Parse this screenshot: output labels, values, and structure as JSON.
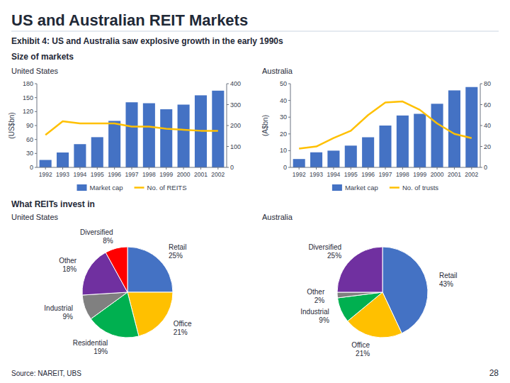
{
  "title": "US and Australian REIT Markets",
  "subtitle": "Exhibit 4: US and Australia saw explosive growth in the early 1990s",
  "annotations": [
    "Size of markets",
    "What REITs invest in",
    "Source:   NAREIT, UBS",
    "28"
  ],
  "chart_data": [
    {
      "type": "bar",
      "title": "United States",
      "categories": [
        "1992",
        "1993",
        "1994",
        "1995",
        "1996",
        "1997",
        "1998",
        "1999",
        "2000",
        "2001",
        "2002"
      ],
      "series": [
        {
          "name": "Market cap",
          "type": "bar",
          "color": "#4472C4",
          "values": [
            16,
            32,
            50,
            65,
            100,
            140,
            138,
            125,
            135,
            155,
            165
          ]
        },
        {
          "name": "No. of REITS",
          "type": "line",
          "color": "#FFC000",
          "axis": "y2",
          "values": [
            155,
            220,
            210,
            210,
            210,
            195,
            195,
            185,
            180,
            175,
            175
          ]
        }
      ],
      "ylabel": "(US$bn)",
      "ylim": [
        0,
        180
      ],
      "yticks": [
        0,
        30,
        60,
        90,
        120,
        150,
        180
      ],
      "y2lim": [
        0,
        400
      ],
      "y2ticks": [
        0,
        100,
        200,
        300,
        400
      ],
      "legend": "bottom",
      "grid": false
    },
    {
      "type": "bar",
      "title": "Australia",
      "categories": [
        "1992",
        "1993",
        "1994",
        "1995",
        "1996",
        "1997",
        "1998",
        "1999",
        "2000",
        "2001",
        "2002"
      ],
      "series": [
        {
          "name": "Market cap",
          "type": "bar",
          "color": "#4472C4",
          "values": [
            5,
            9,
            10,
            13,
            18,
            25,
            31,
            32,
            38,
            46,
            48
          ]
        },
        {
          "name": "No. of trusts",
          "type": "line",
          "color": "#FFC000",
          "axis": "y2",
          "values": [
            18,
            20,
            28,
            35,
            50,
            62,
            63,
            55,
            42,
            32,
            28
          ]
        }
      ],
      "ylabel": "(A$bn)",
      "ylim": [
        0,
        50
      ],
      "yticks": [
        0,
        10,
        20,
        30,
        40,
        50
      ],
      "y2lim": [
        0,
        80
      ],
      "y2ticks": [
        0,
        20,
        40,
        60,
        80
      ],
      "legend": "bottom",
      "grid": false
    },
    {
      "type": "pie",
      "title": "United States",
      "categories": [
        "Retail",
        "Office",
        "Residential",
        "Industrial",
        "Other",
        "Diversified"
      ],
      "values": [
        25,
        21,
        19,
        9,
        18,
        8
      ],
      "value_labels": [
        "25%",
        "21%",
        "19%",
        "9%",
        "18%",
        "8%"
      ],
      "colors": [
        "#4472C4",
        "#FFC000",
        "#00B050",
        "#808080",
        "#7030A0",
        "#FF0000"
      ],
      "data_labels": true
    },
    {
      "type": "pie",
      "title": "Australia",
      "categories": [
        "Retail",
        "Office",
        "Industrial",
        "Other",
        "Diversified"
      ],
      "values": [
        43,
        21,
        9,
        2,
        25
      ],
      "value_labels": [
        "43%",
        "21%",
        "9%",
        "2%",
        "25%"
      ],
      "colors": [
        "#4472C4",
        "#FFC000",
        "#00B050",
        "#808080",
        "#7030A0"
      ],
      "data_labels": true
    }
  ]
}
